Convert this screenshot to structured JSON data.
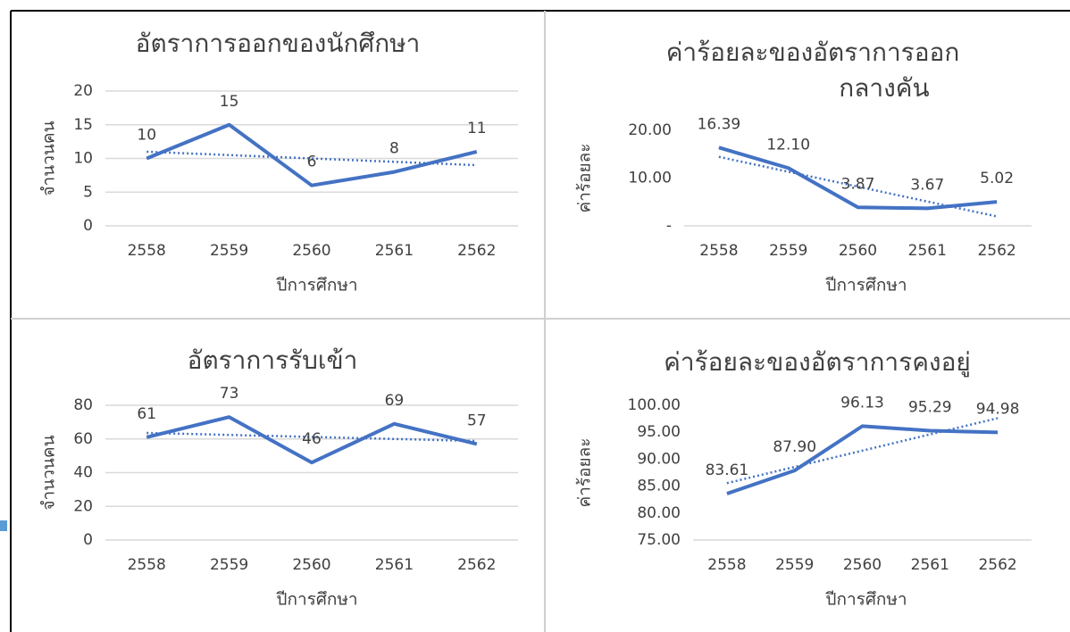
{
  "chart_data": [
    {
      "type": "line",
      "title": "อัตราการออกของนักศึกษา",
      "x_label": "ปีการศึกษา",
      "y_label": "จำนวนคน",
      "categories": [
        "2558",
        "2559",
        "2560",
        "2561",
        "2562"
      ],
      "series": [
        {
          "name": "อัตราการออกของนักศึกษา",
          "color": "#4472c4",
          "values": [
            10,
            15,
            6,
            8,
            11
          ]
        }
      ],
      "ylim": [
        0,
        20
      ],
      "yticks": [
        0,
        5,
        10,
        15,
        20
      ],
      "grid": true,
      "trendline": "linear"
    },
    {
      "type": "line",
      "title": [
        "ค่าร้อยละของอัตราการออก",
        "กลางคัน"
      ],
      "x_label": "ปีการศึกษา",
      "y_label": "ค่าร้อยละ",
      "categories": [
        "2558",
        "2559",
        "2560",
        "2561",
        "2562"
      ],
      "series": [
        {
          "name": "ค่าร้อยละของอัตราการออกกลางคัน",
          "color": "#4472c4",
          "values": [
            16.39,
            12.1,
            3.87,
            3.67,
            5.02
          ],
          "value_labels": [
            "16.39",
            "12.10",
            "3.87",
            "3.67",
            "5.02"
          ]
        }
      ],
      "ylim": [
        0,
        20
      ],
      "yticks": [
        {
          "value": 0,
          "label": "-"
        },
        {
          "value": 10,
          "label": "10.00"
        },
        {
          "value": 20,
          "label": "20.00"
        }
      ],
      "grid": false,
      "trendline": "linear"
    },
    {
      "type": "line",
      "title": "อัตราการรับเข้า",
      "x_label": "ปีการศึกษา",
      "y_label": "จำนวนคน",
      "categories": [
        "2558",
        "2559",
        "2560",
        "2561",
        "2562"
      ],
      "series": [
        {
          "name": "อัตราการรับเข้า",
          "color": "#4472c4",
          "values": [
            61,
            73,
            46,
            69,
            57
          ]
        }
      ],
      "ylim": [
        0,
        80
      ],
      "yticks": [
        0,
        20,
        40,
        60,
        80
      ],
      "grid": true,
      "trendline": "linear"
    },
    {
      "type": "line",
      "title": "ค่าร้อยละของอัตราการคงอยู่",
      "x_label": "ปีการศึกษา",
      "y_label": "ค่าร้อยละ",
      "categories": [
        "2558",
        "2559",
        "2560",
        "2561",
        "2562"
      ],
      "series": [
        {
          "name": "ค่าร้อยละของอัตราการคงอยู่",
          "color": "#4472c4",
          "values": [
            83.61,
            87.9,
            96.13,
            95.29,
            94.98
          ],
          "value_labels": [
            "83.61",
            "87.90",
            "96.13",
            "95.29",
            "94.98"
          ]
        }
      ],
      "ylim": [
        75,
        100
      ],
      "yticks": [
        {
          "value": 75,
          "label": "75.00"
        },
        {
          "value": 80,
          "label": "80.00"
        },
        {
          "value": 85,
          "label": "85.00"
        },
        {
          "value": 90,
          "label": "90.00"
        },
        {
          "value": 95,
          "label": "95.00"
        },
        {
          "value": 100,
          "label": "100.00"
        }
      ],
      "grid": false,
      "trendline": "linear"
    }
  ]
}
